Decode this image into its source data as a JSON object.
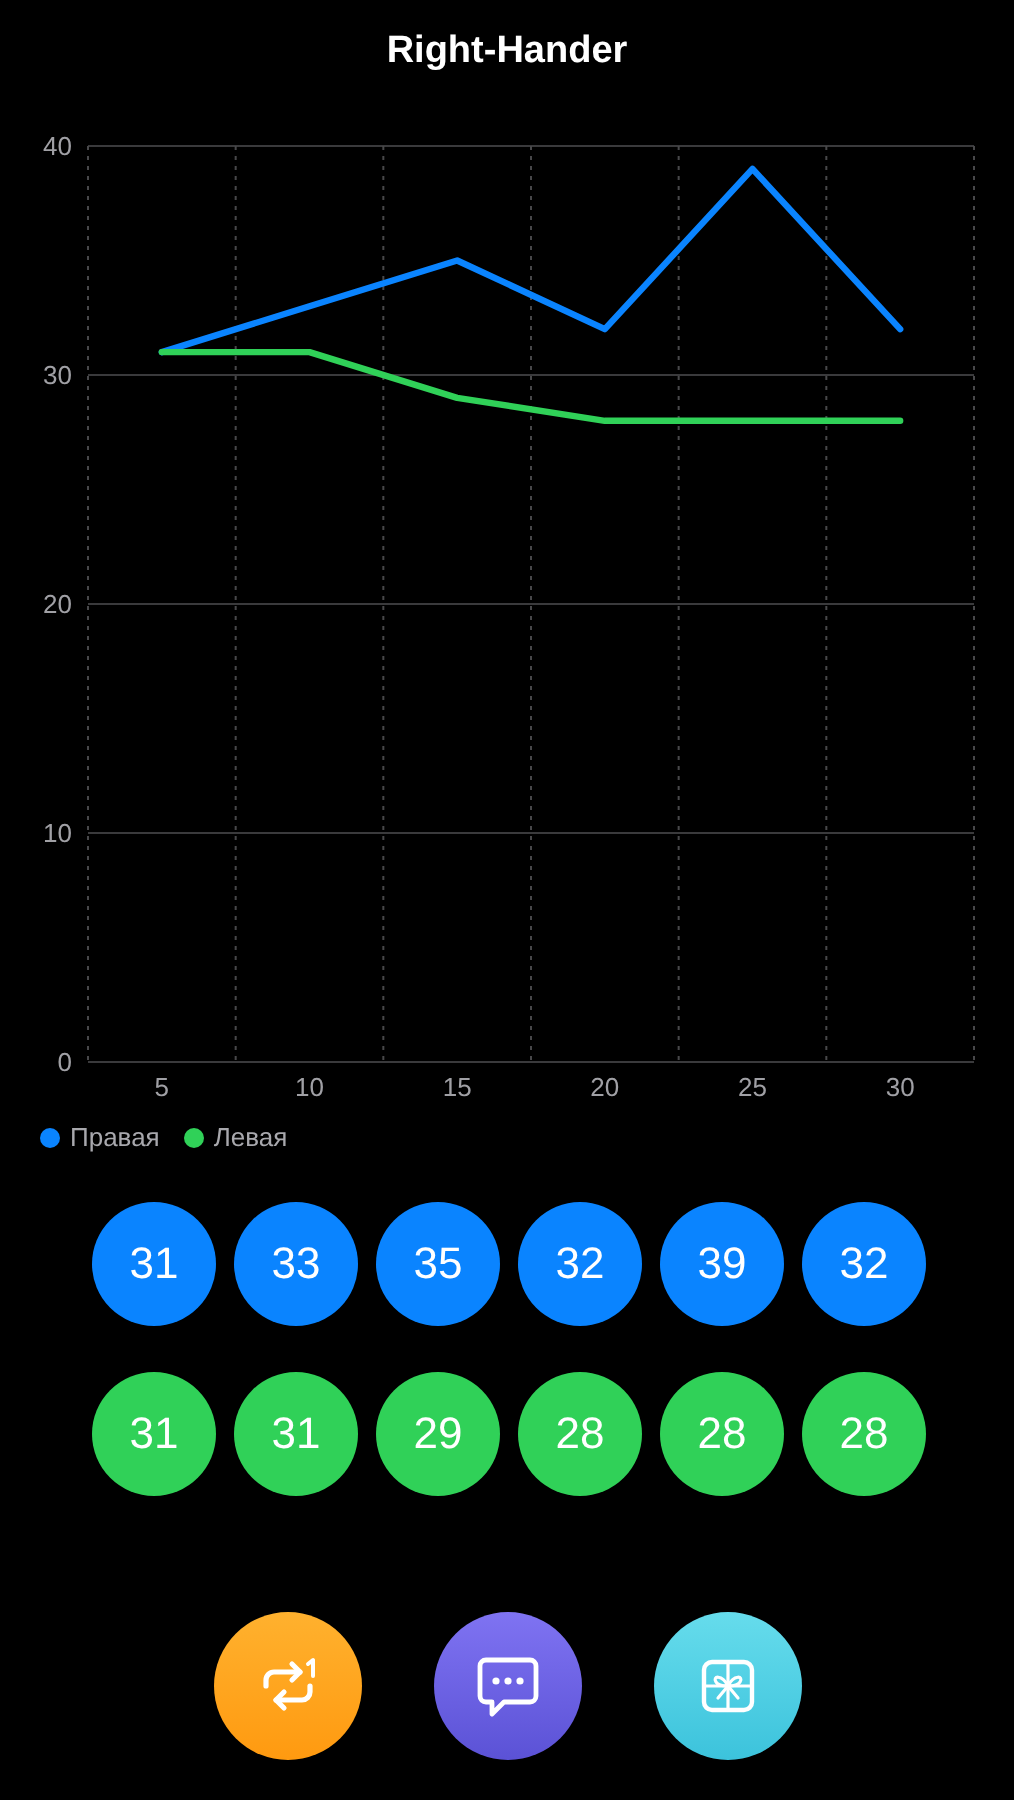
{
  "chart_data": {
    "type": "line",
    "title": "Right-Hander",
    "categories": [
      "5",
      "10",
      "15",
      "20",
      "25",
      "30"
    ],
    "series": [
      {
        "name": "Правая",
        "color": "#0a84ff",
        "values": [
          31,
          33,
          35,
          32,
          39,
          32
        ]
      },
      {
        "name": "Левая",
        "color": "#30d158",
        "values": [
          31,
          31,
          29,
          28,
          28,
          28
        ]
      }
    ],
    "ylim": [
      0,
      40
    ],
    "yticks": [
      0,
      10,
      20,
      30,
      40
    ],
    "grid": true,
    "legend": "bottom left",
    "marker": "none",
    "line_style": "solid",
    "data_labels": true
  }
}
